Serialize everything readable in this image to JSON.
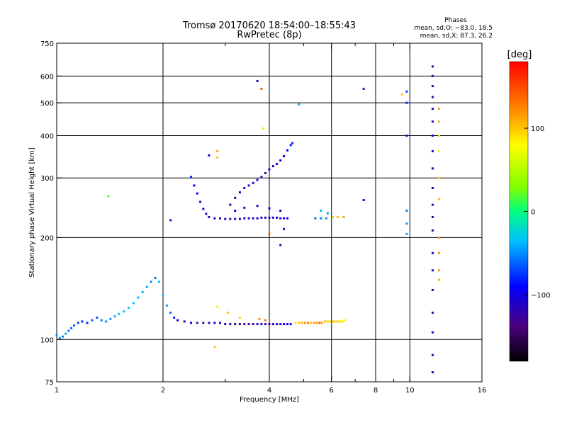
{
  "chart_data": {
    "type": "scatter",
    "title": "Tromsø 20170620 18:54:00–18:55:43",
    "subtitle": "RwPretec (8p)",
    "stats": {
      "heading": "Phases",
      "line_o": "mean, sd,O: −83.0, 18.5",
      "line_x": "mean, sd,X:  87.3, 26.2"
    },
    "xlabel": "Frequency [MHz]",
    "ylabel": "Stationary phase Virtual Height [km]",
    "x_scale": "log",
    "y_scale": "log",
    "xlim": [
      1,
      16
    ],
    "ylim": [
      75,
      750
    ],
    "x_ticks": [
      {
        "value": 1,
        "label": "1"
      },
      {
        "value": 2,
        "label": "2"
      },
      {
        "value": 4,
        "label": "4"
      },
      {
        "value": 6,
        "label": "6"
      },
      {
        "value": 8,
        "label": "8"
      },
      {
        "value": 10,
        "label": "10"
      },
      {
        "value": 16,
        "label": "16"
      }
    ],
    "x_minor_ticks": [
      3,
      5,
      7,
      9
    ],
    "y_ticks": [
      {
        "value": 75,
        "label": "75"
      },
      {
        "value": 100,
        "label": "100"
      },
      {
        "value": 200,
        "label": "200"
      },
      {
        "value": 300,
        "label": "300"
      },
      {
        "value": 400,
        "label": "400"
      },
      {
        "value": 500,
        "label": "500"
      },
      {
        "value": 600,
        "label": "600"
      },
      {
        "value": 750,
        "label": "750"
      }
    ],
    "grid": true,
    "colorbar": {
      "label": "[deg]",
      "range": [
        -180,
        180
      ],
      "ticks": [
        {
          "value": 100,
          "label": "100"
        },
        {
          "value": 0,
          "label": "0"
        },
        {
          "value": -100,
          "label": "−100"
        }
      ]
    },
    "series": [
      {
        "points": [
          [
            1.0,
            103,
            -50
          ],
          [
            1.02,
            101,
            -48
          ],
          [
            1.04,
            102,
            -52
          ],
          [
            1.06,
            104,
            -45
          ],
          [
            1.08,
            106,
            -55
          ],
          [
            1.1,
            108,
            -60
          ],
          [
            1.12,
            110,
            -65
          ],
          [
            1.15,
            112,
            -70
          ],
          [
            1.18,
            113,
            -80
          ],
          [
            1.22,
            112,
            -75
          ],
          [
            1.26,
            114,
            -60
          ],
          [
            1.3,
            116,
            -65
          ],
          [
            1.34,
            114,
            -55
          ],
          [
            1.38,
            113,
            -50
          ],
          [
            1.42,
            115,
            -45
          ],
          [
            1.46,
            117,
            -40
          ],
          [
            1.5,
            119,
            -35
          ],
          [
            1.55,
            121,
            -30
          ],
          [
            1.6,
            124,
            -25
          ],
          [
            1.65,
            128,
            -30
          ],
          [
            1.7,
            133,
            -35
          ],
          [
            1.75,
            138,
            -40
          ],
          [
            1.8,
            143,
            -45
          ],
          [
            1.85,
            148,
            -50
          ],
          [
            1.9,
            152,
            -55
          ],
          [
            1.95,
            148,
            -30
          ],
          [
            2.0,
            135,
            -35
          ],
          [
            2.05,
            126,
            -45
          ],
          [
            2.1,
            120,
            -60
          ],
          [
            2.15,
            116,
            -80
          ],
          [
            2.2,
            114,
            -100
          ],
          [
            2.3,
            113,
            -110
          ],
          [
            2.4,
            112,
            -115
          ],
          [
            2.5,
            112,
            -118
          ],
          [
            2.6,
            112,
            -120
          ],
          [
            2.7,
            112,
            -115
          ],
          [
            2.8,
            112,
            -110
          ],
          [
            2.9,
            112,
            -118
          ],
          [
            3.0,
            111,
            -115
          ],
          [
            3.1,
            111,
            -120
          ],
          [
            3.2,
            111,
            -125
          ],
          [
            3.3,
            111,
            -130
          ],
          [
            3.4,
            111,
            -135
          ],
          [
            3.5,
            111,
            -135
          ],
          [
            3.6,
            111,
            -120
          ],
          [
            3.7,
            111,
            -115
          ],
          [
            3.8,
            111,
            -110
          ],
          [
            3.9,
            111,
            -120
          ],
          [
            4.0,
            111,
            -125
          ],
          [
            4.1,
            111,
            -115
          ],
          [
            4.2,
            111,
            -110
          ],
          [
            4.3,
            111,
            -105
          ],
          [
            4.4,
            111,
            -100
          ],
          [
            4.5,
            111,
            -95
          ],
          [
            4.6,
            111,
            -90
          ]
        ]
      },
      {
        "points": [
          [
            4.75,
            112,
            90
          ],
          [
            4.85,
            112,
            100
          ],
          [
            4.95,
            112,
            110
          ],
          [
            5.05,
            112,
            120
          ],
          [
            5.15,
            112,
            130
          ],
          [
            5.25,
            112,
            100
          ],
          [
            5.35,
            112,
            110
          ],
          [
            5.45,
            112,
            120
          ],
          [
            5.55,
            112,
            140
          ],
          [
            5.65,
            112,
            110
          ],
          [
            5.75,
            113,
            100
          ],
          [
            5.85,
            113,
            95
          ],
          [
            5.95,
            113,
            100
          ],
          [
            6.05,
            113,
            105
          ],
          [
            6.15,
            113,
            95
          ],
          [
            6.25,
            113,
            100
          ],
          [
            6.35,
            113,
            90
          ],
          [
            6.45,
            113,
            85
          ],
          [
            6.55,
            114,
            80
          ],
          [
            3.75,
            115,
            120
          ],
          [
            3.9,
            114,
            130
          ],
          [
            3.3,
            116,
            95
          ],
          [
            3.05,
            120,
            100
          ],
          [
            2.85,
            125,
            85
          ]
        ]
      },
      {
        "points": [
          [
            2.4,
            302,
            -80
          ],
          [
            2.45,
            285,
            -90
          ],
          [
            2.5,
            270,
            -95
          ],
          [
            2.55,
            255,
            -100
          ],
          [
            2.6,
            243,
            -105
          ],
          [
            2.65,
            235,
            -110
          ],
          [
            2.7,
            230,
            -112
          ],
          [
            2.8,
            228,
            -115
          ],
          [
            2.9,
            228,
            -118
          ],
          [
            3.0,
            227,
            -120
          ],
          [
            3.1,
            227,
            -115
          ],
          [
            3.2,
            227,
            -110
          ],
          [
            3.3,
            227,
            -112
          ],
          [
            3.4,
            228,
            -118
          ],
          [
            3.5,
            228,
            -120
          ],
          [
            3.6,
            228,
            -115
          ],
          [
            3.7,
            228,
            -110
          ],
          [
            3.8,
            229,
            -112
          ],
          [
            3.9,
            229,
            -118
          ],
          [
            4.0,
            229,
            -120
          ],
          [
            4.1,
            229,
            -115
          ],
          [
            4.2,
            229,
            -110
          ],
          [
            4.3,
            228,
            -105
          ],
          [
            4.4,
            228,
            -100
          ],
          [
            4.5,
            228,
            -95
          ],
          [
            3.1,
            250,
            -110
          ],
          [
            3.2,
            262,
            -115
          ],
          [
            3.3,
            272,
            -120
          ],
          [
            3.4,
            280,
            -118
          ],
          [
            3.5,
            285,
            -115
          ],
          [
            3.6,
            290,
            -110
          ],
          [
            3.7,
            296,
            -112
          ],
          [
            3.8,
            302,
            -118
          ],
          [
            3.9,
            310,
            -120
          ],
          [
            4.0,
            318,
            -115
          ],
          [
            4.1,
            325,
            -110
          ],
          [
            4.2,
            330,
            -105
          ],
          [
            4.3,
            338,
            -100
          ],
          [
            4.4,
            348,
            -95
          ],
          [
            4.5,
            362,
            -90
          ],
          [
            4.6,
            375,
            -85
          ],
          [
            4.65,
            380,
            -80
          ],
          [
            3.2,
            240,
            -100
          ],
          [
            3.4,
            245,
            -105
          ],
          [
            3.7,
            248,
            -110
          ],
          [
            4.0,
            244,
            -108
          ],
          [
            4.3,
            240,
            -100
          ],
          [
            5.4,
            228,
            -60
          ],
          [
            5.6,
            228,
            -55
          ],
          [
            5.8,
            228,
            -50
          ],
          [
            5.6,
            240,
            -40
          ],
          [
            5.85,
            236,
            -45
          ],
          [
            6.05,
            230,
            100
          ],
          [
            6.25,
            230,
            105
          ],
          [
            6.5,
            230,
            110
          ]
        ]
      },
      {
        "points": [
          [
            11.6,
            640,
            -120
          ],
          [
            11.6,
            600,
            -125
          ],
          [
            11.6,
            560,
            -118
          ],
          [
            11.6,
            520,
            -115
          ],
          [
            11.6,
            480,
            -120
          ],
          [
            11.6,
            440,
            -122
          ],
          [
            11.6,
            400,
            -118
          ],
          [
            11.6,
            360,
            -115
          ],
          [
            11.6,
            320,
            -120
          ],
          [
            11.6,
            280,
            -118
          ],
          [
            11.6,
            250,
            -115
          ],
          [
            11.6,
            230,
            -120
          ],
          [
            11.6,
            210,
            -118
          ],
          [
            11.6,
            180,
            -115
          ],
          [
            11.6,
            160,
            -110
          ],
          [
            11.6,
            140,
            -118
          ],
          [
            11.6,
            120,
            -120
          ],
          [
            11.6,
            105,
            -115
          ],
          [
            11.6,
            90,
            -118
          ],
          [
            11.6,
            80,
            -120
          ],
          [
            12.1,
            480,
            110
          ],
          [
            12.1,
            440,
            100
          ],
          [
            12.1,
            400,
            90
          ],
          [
            12.1,
            360,
            80
          ],
          [
            12.1,
            300,
            95
          ],
          [
            12.1,
            260,
            100
          ],
          [
            12.1,
            200,
            120
          ],
          [
            12.1,
            180,
            115
          ],
          [
            12.1,
            160,
            110
          ],
          [
            12.1,
            150,
            105
          ],
          [
            9.8,
            540,
            -70
          ],
          [
            9.8,
            500,
            -80
          ],
          [
            9.8,
            400,
            -110
          ],
          [
            9.8,
            240,
            -55
          ],
          [
            9.8,
            220,
            -45
          ],
          [
            9.8,
            205,
            -40
          ],
          [
            9.5,
            530,
            100
          ],
          [
            7.4,
            550,
            -110
          ],
          [
            7.4,
            258,
            -110
          ],
          [
            3.7,
            580,
            -120
          ],
          [
            3.8,
            550,
            140
          ],
          [
            3.85,
            420,
            90
          ],
          [
            2.85,
            360,
            110
          ],
          [
            2.85,
            345,
            100
          ],
          [
            2.7,
            350,
            -110
          ],
          [
            1.4,
            265,
            20
          ],
          [
            2.1,
            225,
            -120
          ],
          [
            2.8,
            95,
            100
          ],
          [
            4.3,
            190,
            -120
          ],
          [
            4.0,
            205,
            140
          ],
          [
            4.85,
            495,
            -40
          ],
          [
            4.4,
            212,
            -120
          ]
        ]
      }
    ]
  }
}
